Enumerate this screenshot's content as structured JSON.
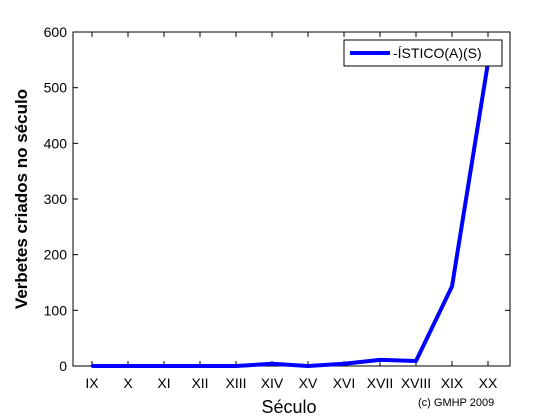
{
  "chart_data": {
    "type": "line",
    "xlabel": "Século",
    "ylabel": "Verbetes criados no século",
    "ylim": [
      0,
      600
    ],
    "yticks": [
      0,
      100,
      200,
      300,
      400,
      500,
      600
    ],
    "categories": [
      "IX",
      "X",
      "XI",
      "XII",
      "XIII",
      "XIV",
      "XV",
      "XVI",
      "XVII",
      "XVIII",
      "XIX",
      "XX"
    ],
    "series": [
      {
        "name": "-ÍSTICO(A)(S)",
        "color": "#0000ff",
        "values": [
          0,
          0,
          0,
          0,
          0,
          4,
          0,
          4,
          11,
          9,
          143,
          545
        ]
      }
    ],
    "legend_position": "top-right",
    "grid": false,
    "credit": "(c) GMHP 2009"
  }
}
